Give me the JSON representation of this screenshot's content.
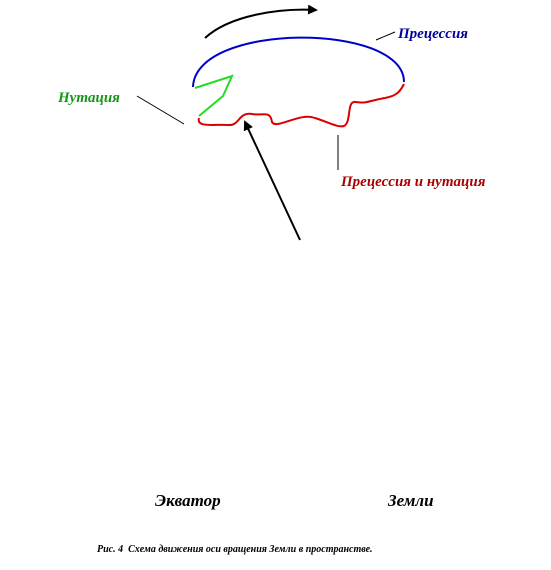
{
  "labels": {
    "precession": "Прецессия",
    "nutation": "Нутация",
    "precession_and_nutation": "Прецессия и нутация",
    "equator": "Экватор",
    "earth": "Земли"
  },
  "caption": "Рис. 4  Схема движения оси вращения Земли в пространстве."
}
